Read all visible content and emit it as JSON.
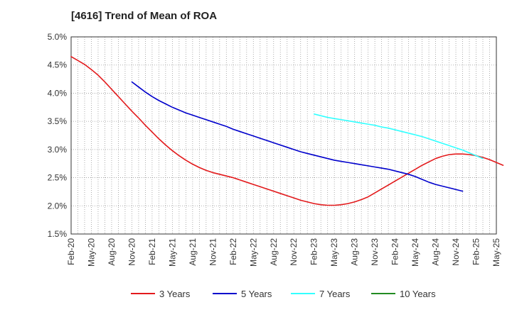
{
  "chart_data": {
    "type": "line",
    "title": "[4616]  Trend of Mean of ROA",
    "xlabel": "",
    "ylabel": "",
    "ylim": [
      1.5,
      5.0
    ],
    "y_ticks": [
      "1.5%",
      "2.0%",
      "2.5%",
      "3.0%",
      "3.5%",
      "4.0%",
      "4.5%",
      "5.0%"
    ],
    "y_tick_values": [
      1.5,
      2.0,
      2.5,
      3.0,
      3.5,
      4.0,
      4.5,
      5.0
    ],
    "x_ticks": [
      "Feb-20",
      "May-20",
      "Aug-20",
      "Nov-20",
      "Feb-21",
      "May-21",
      "Aug-21",
      "Nov-21",
      "Feb-22",
      "May-22",
      "Aug-22",
      "Nov-22",
      "Feb-23",
      "May-23",
      "Aug-23",
      "Nov-23",
      "Feb-24",
      "May-24",
      "Aug-24",
      "Nov-24",
      "Feb-25",
      "May-25"
    ],
    "grid": true,
    "legend_position": "bottom",
    "series": [
      {
        "name": "3 Years",
        "color": "#e31a1c",
        "start_index": 0,
        "values": [
          4.65,
          4.58,
          4.51,
          4.42,
          4.32,
          4.2,
          4.07,
          3.94,
          3.81,
          3.68,
          3.56,
          3.43,
          3.31,
          3.19,
          3.08,
          2.98,
          2.89,
          2.81,
          2.74,
          2.68,
          2.63,
          2.59,
          2.56,
          2.53,
          2.5,
          2.46,
          2.42,
          2.38,
          2.34,
          2.3,
          2.26,
          2.22,
          2.18,
          2.14,
          2.1,
          2.07,
          2.04,
          2.02,
          2.01,
          2.01,
          2.02,
          2.04,
          2.07,
          2.11,
          2.16,
          2.23,
          2.3,
          2.37,
          2.44,
          2.51,
          2.58,
          2.65,
          2.72,
          2.78,
          2.84,
          2.88,
          2.91,
          2.92,
          2.92,
          2.91,
          2.89,
          2.86,
          2.82,
          2.77,
          2.72
        ]
      },
      {
        "name": "5 Years",
        "color": "#0000cc",
        "start_index": 9,
        "values": [
          4.2,
          4.11,
          4.02,
          3.94,
          3.87,
          3.81,
          3.75,
          3.7,
          3.65,
          3.61,
          3.57,
          3.53,
          3.49,
          3.45,
          3.41,
          3.36,
          3.32,
          3.28,
          3.24,
          3.2,
          3.16,
          3.12,
          3.08,
          3.04,
          3.0,
          2.96,
          2.93,
          2.9,
          2.87,
          2.84,
          2.81,
          2.79,
          2.77,
          2.75,
          2.73,
          2.71,
          2.69,
          2.67,
          2.65,
          2.62,
          2.59,
          2.56,
          2.52,
          2.47,
          2.42,
          2.38,
          2.35,
          2.32,
          2.29,
          2.26
        ]
      },
      {
        "name": "7 Years",
        "color": "#33ffff",
        "start_index": 36,
        "values": [
          3.63,
          3.6,
          3.57,
          3.55,
          3.53,
          3.51,
          3.49,
          3.47,
          3.45,
          3.43,
          3.4,
          3.38,
          3.35,
          3.32,
          3.29,
          3.26,
          3.23,
          3.19,
          3.15,
          3.11,
          3.07,
          3.03,
          2.99,
          2.94,
          2.89,
          2.84
        ]
      },
      {
        "name": "10 Years",
        "color": "#228b22",
        "start_index": 0,
        "values": []
      }
    ]
  }
}
